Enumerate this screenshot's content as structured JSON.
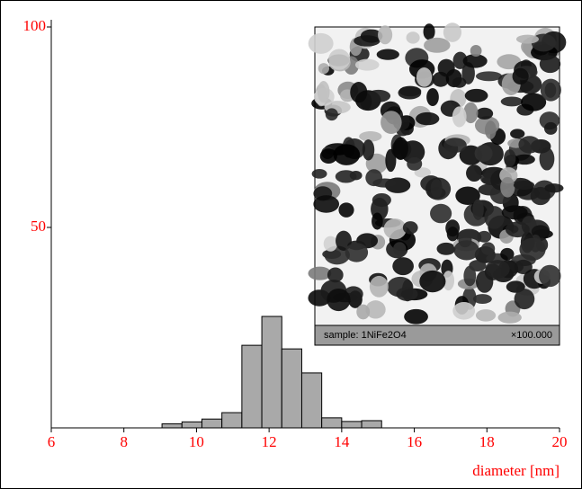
{
  "chart_data": {
    "type": "histogram",
    "x_label": "diameter [nm]",
    "bins": [
      9.05,
      9.6,
      10.15,
      10.7,
      11.25,
      11.8,
      12.35,
      12.9,
      13.45,
      14.0,
      14.55,
      15.1
    ],
    "values": [
      1,
      1.5,
      2.2,
      3.8,
      20.6,
      27.8,
      19.7,
      13.7,
      2.5,
      1.6,
      1.8
    ],
    "color": "#a9a9a9",
    "xlim": [
      6,
      20
    ],
    "xticks": [
      6,
      8,
      10,
      12,
      14,
      16,
      18,
      20
    ],
    "ylim": [
      0,
      100
    ],
    "yticks": [
      50,
      100
    ],
    "tick_color": "#ff0000",
    "inset_caption": {
      "sample": "sample: 1NiFe2O4",
      "magnification": "×100.000"
    }
  }
}
